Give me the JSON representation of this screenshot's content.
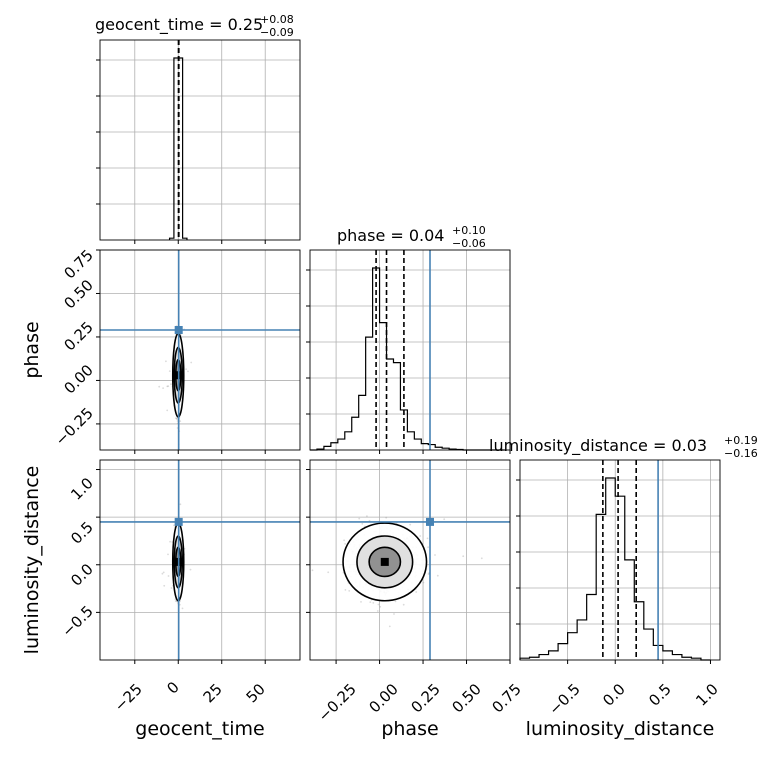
{
  "figure": {
    "truth_color": "#4682b4",
    "hist_color": "#000000",
    "grid_color": "#b0b0b0",
    "scatter_color": "#999999"
  },
  "chart_data": [
    {
      "type": "histogram",
      "panel": "diag-geocent",
      "title_param": "geocent_time",
      "title_value": "0.25",
      "title_plus": "+0.08",
      "title_minus": "−0.09",
      "xlim": [
        -45,
        70
      ],
      "xticks": [
        -25,
        0,
        25,
        50
      ],
      "bin_edges": [
        -5,
        -2.5,
        0,
        2.5,
        5
      ],
      "counts": [
        0.01,
        1.0,
        1.0,
        0.01
      ],
      "quantiles": [
        0.16,
        0.25,
        0.33
      ],
      "truth": null
    },
    {
      "type": "histogram",
      "panel": "diag-phase",
      "title_param": "phase",
      "title_value": "0.04",
      "title_plus": "+0.10",
      "title_minus": "−0.06",
      "xlim": [
        -0.4,
        0.75
      ],
      "xticks": [
        -0.25,
        0.0,
        0.25,
        0.5,
        0.75
      ],
      "xtick_labels": [
        "−0.25",
        "0.00",
        "0.25",
        "0.50",
        "0.75"
      ],
      "bin_edges": [
        -0.4,
        -0.36,
        -0.32,
        -0.28,
        -0.24,
        -0.2,
        -0.16,
        -0.12,
        -0.08,
        -0.04,
        0.0,
        0.04,
        0.08,
        0.12,
        0.16,
        0.2,
        0.24,
        0.28,
        0.32,
        0.36,
        0.4,
        0.44,
        0.48,
        0.52,
        0.56,
        0.6,
        0.64,
        0.68,
        0.72
      ],
      "counts": [
        0,
        0.005,
        0.02,
        0.04,
        0.06,
        0.1,
        0.18,
        0.3,
        0.62,
        1.0,
        0.7,
        0.5,
        0.48,
        0.22,
        0.1,
        0.06,
        0.035,
        0.03,
        0.015,
        0.01,
        0.005,
        0.003,
        0,
        0,
        0,
        0,
        0,
        0
      ],
      "quantiles": [
        -0.02,
        0.04,
        0.14
      ],
      "truth": 0.29
    },
    {
      "type": "histogram",
      "panel": "diag-lumdist",
      "title_param": "luminosity_distance",
      "title_value": "0.03",
      "title_plus": "+0.19",
      "title_minus": "−0.16",
      "xlim": [
        -1.0,
        1.1
      ],
      "xticks": [
        -0.5,
        0.0,
        0.5,
        1.0
      ],
      "xtick_labels": [
        "−0.5",
        "0.0",
        "0.5",
        "1.0"
      ],
      "bin_edges": [
        -1.0,
        -0.9,
        -0.8,
        -0.7,
        -0.6,
        -0.5,
        -0.4,
        -0.3,
        -0.2,
        -0.1,
        0.0,
        0.1,
        0.2,
        0.3,
        0.4,
        0.5,
        0.6,
        0.7,
        0.8,
        0.9,
        1.0
      ],
      "counts": [
        0.01,
        0.015,
        0.03,
        0.05,
        0.09,
        0.15,
        0.22,
        0.36,
        0.8,
        1.0,
        0.9,
        0.55,
        0.32,
        0.17,
        0.08,
        0.05,
        0.03,
        0.015,
        0.01,
        0.0
      ],
      "quantiles": [
        -0.13,
        0.03,
        0.22
      ],
      "truth": 0.45
    },
    {
      "type": "scatter",
      "panel": "lower-geocent-phase",
      "x_param": "geocent_time",
      "y_param": "phase",
      "xlim": [
        -45,
        70
      ],
      "ylim": [
        -0.4,
        0.75
      ],
      "center": [
        0,
        0.03
      ],
      "spread": [
        1.0,
        0.1
      ],
      "truth": [
        0.25,
        0.29
      ]
    },
    {
      "type": "scatter",
      "panel": "lower-geocent-lumdist",
      "x_param": "geocent_time",
      "y_param": "luminosity_distance",
      "xlim": [
        -45,
        70
      ],
      "ylim": [
        -1.0,
        1.1
      ],
      "center": [
        0,
        0.03
      ],
      "spread": [
        1.0,
        0.17
      ],
      "truth": [
        0.25,
        0.45
      ]
    },
    {
      "type": "scatter",
      "panel": "lower-phase-lumdist",
      "x_param": "phase",
      "y_param": "luminosity_distance",
      "xlim": [
        -0.4,
        0.75
      ],
      "ylim": [
        -1.0,
        1.1
      ],
      "center": [
        0.03,
        0.03
      ],
      "spread": [
        0.1,
        0.17
      ],
      "truth": [
        0.29,
        0.45
      ]
    }
  ],
  "axes": {
    "geocent_time_label": "geocent_time",
    "phase_label": "phase",
    "luminosity_distance_label": "luminosity_distance",
    "geocent_ticks": [
      "−25",
      "0",
      "25",
      "50"
    ],
    "phase_x_ticks": [
      "−0.25",
      "0.00",
      "0.25",
      "0.50",
      "0.75"
    ],
    "phase_y_ticks": [
      "−0.25",
      "0.00",
      "0.25",
      "0.50",
      "0.75"
    ],
    "lumdist_x_ticks": [
      "−0.5",
      "0.0",
      "0.5",
      "1.0"
    ],
    "lumdist_y_ticks": [
      "−0.5",
      "0.0",
      "0.5",
      "1.0"
    ]
  }
}
